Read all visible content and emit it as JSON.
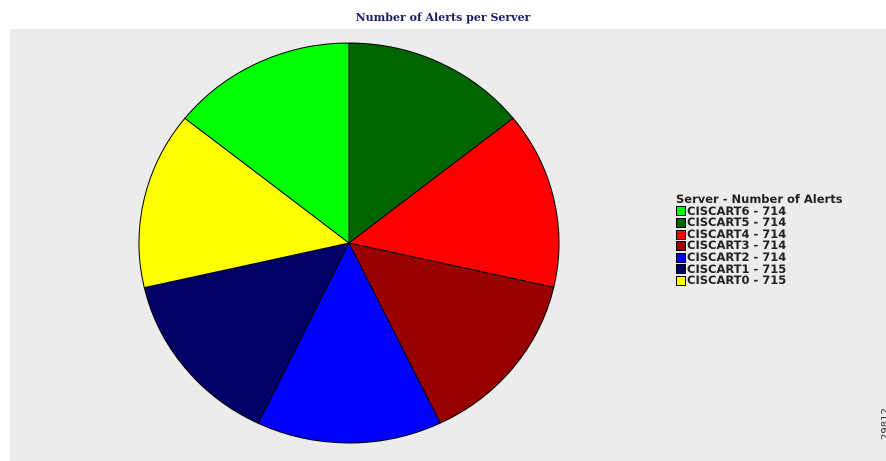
{
  "chart_data": {
    "type": "pie",
    "title": "Number of Alerts per Server",
    "legend_title": "Server - Number of Alerts",
    "legend_position": "right",
    "start_angle_deg": 90,
    "direction": "clockwise",
    "slices": [
      {
        "label": "CISCART5 - 714",
        "value": 714,
        "color": "#006400"
      },
      {
        "label": "CISCART4 - 714",
        "value": 714,
        "color": "#ff0000"
      },
      {
        "label": "CISCART3 - 714",
        "value": 714,
        "color": "#990000"
      },
      {
        "label": "CISCART2 - 714",
        "value": 714,
        "color": "#0000ff"
      },
      {
        "label": "CISCART1 - 715",
        "value": 715,
        "color": "#000066"
      },
      {
        "label": "CISCART0 - 715",
        "value": 715,
        "color": "#ffff00"
      },
      {
        "label": "CISCART6 - 714",
        "value": 714,
        "color": "#00ff00"
      }
    ],
    "legend": [
      {
        "label": "CISCART6 - 714",
        "color": "#00ff00"
      },
      {
        "label": "CISCART5 - 714",
        "color": "#006400"
      },
      {
        "label": "CISCART4 - 714",
        "color": "#ff0000"
      },
      {
        "label": "CISCART3 - 714",
        "color": "#990000"
      },
      {
        "label": "CISCART2 - 714",
        "color": "#0000ff"
      },
      {
        "label": "CISCART1 - 715",
        "color": "#000066"
      },
      {
        "label": "CISCART0 - 715",
        "color": "#ffff00"
      }
    ]
  },
  "figure_id": "29812"
}
